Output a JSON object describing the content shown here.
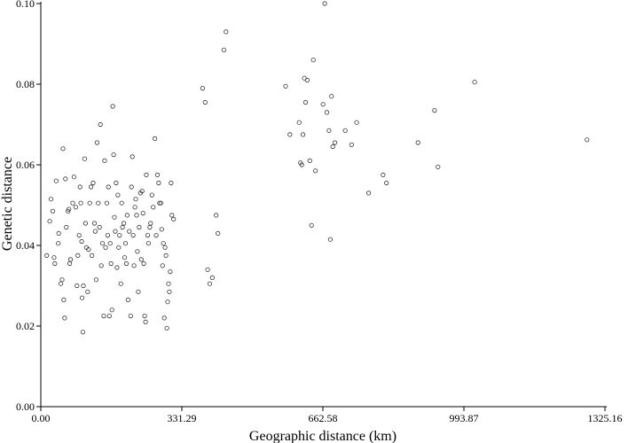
{
  "chart_data": {
    "type": "scatter",
    "title": "",
    "xlabel": "Geographic distance (km)",
    "ylabel": "Genetic distance",
    "xlim": [
      0,
      1325.16
    ],
    "ylim": [
      0,
      0.1
    ],
    "xticks": [
      0,
      331.29,
      662.58,
      993.87,
      1325.16
    ],
    "xtick_labels": [
      "0.00",
      "331.29",
      "662.58",
      "993.87",
      "1325.16"
    ],
    "yticks": [
      0,
      0.02,
      0.04,
      0.06,
      0.08,
      0.1
    ],
    "ytick_labels": [
      "0.00",
      "0.02",
      "0.04",
      "0.06",
      "0.08",
      "0.10"
    ],
    "grid": false,
    "marker": "open-circle",
    "points": [
      [
        14,
        0.0375
      ],
      [
        21,
        0.046
      ],
      [
        24,
        0.0515
      ],
      [
        28,
        0.0485
      ],
      [
        31,
        0.037
      ],
      [
        33,
        0.0355
      ],
      [
        36,
        0.056
      ],
      [
        41,
        0.0405
      ],
      [
        42,
        0.043
      ],
      [
        47,
        0.0305
      ],
      [
        50,
        0.0315
      ],
      [
        52,
        0.064
      ],
      [
        54,
        0.0265
      ],
      [
        56,
        0.022
      ],
      [
        58,
        0.0565
      ],
      [
        60,
        0.0445
      ],
      [
        64,
        0.0485
      ],
      [
        66,
        0.049
      ],
      [
        68,
        0.0355
      ],
      [
        70,
        0.0365
      ],
      [
        75,
        0.0505
      ],
      [
        78,
        0.057
      ],
      [
        82,
        0.0495
      ],
      [
        85,
        0.03
      ],
      [
        87,
        0.0375
      ],
      [
        90,
        0.0425
      ],
      [
        92,
        0.0545
      ],
      [
        94,
        0.0505
      ],
      [
        96,
        0.041
      ],
      [
        97,
        0.027
      ],
      [
        99,
        0.0185
      ],
      [
        100,
        0.03
      ],
      [
        103,
        0.0615
      ],
      [
        105,
        0.0455
      ],
      [
        107,
        0.0395
      ],
      [
        110,
        0.0285
      ],
      [
        112,
        0.039
      ],
      [
        115,
        0.0505
      ],
      [
        118,
        0.0545
      ],
      [
        120,
        0.0375
      ],
      [
        123,
        0.0555
      ],
      [
        126,
        0.0455
      ],
      [
        128,
        0.0435
      ],
      [
        130,
        0.0315
      ],
      [
        132,
        0.0655
      ],
      [
        135,
        0.0505
      ],
      [
        138,
        0.0445
      ],
      [
        140,
        0.07
      ],
      [
        142,
        0.035
      ],
      [
        145,
        0.0405
      ],
      [
        148,
        0.0225
      ],
      [
        150,
        0.061
      ],
      [
        152,
        0.0395
      ],
      [
        155,
        0.0505
      ],
      [
        157,
        0.0425
      ],
      [
        159,
        0.0545
      ],
      [
        161,
        0.0225
      ],
      [
        163,
        0.0405
      ],
      [
        165,
        0.0355
      ],
      [
        167,
        0.024
      ],
      [
        169,
        0.0745
      ],
      [
        171,
        0.0625
      ],
      [
        173,
        0.047
      ],
      [
        175,
        0.0435
      ],
      [
        177,
        0.0555
      ],
      [
        179,
        0.0345
      ],
      [
        181,
        0.0525
      ],
      [
        183,
        0.0395
      ],
      [
        185,
        0.0425
      ],
      [
        188,
        0.0305
      ],
      [
        190,
        0.0505
      ],
      [
        192,
        0.0445
      ],
      [
        195,
        0.0455
      ],
      [
        197,
        0.037
      ],
      [
        199,
        0.0405
      ],
      [
        201,
        0.0355
      ],
      [
        203,
        0.0475
      ],
      [
        205,
        0.0265
      ],
      [
        208,
        0.0435
      ],
      [
        211,
        0.0225
      ],
      [
        213,
        0.0545
      ],
      [
        215,
        0.062
      ],
      [
        217,
        0.0425
      ],
      [
        219,
        0.035
      ],
      [
        221,
        0.0495
      ],
      [
        223,
        0.0515
      ],
      [
        225,
        0.0475
      ],
      [
        227,
        0.0385
      ],
      [
        229,
        0.0285
      ],
      [
        231,
        0.0445
      ],
      [
        234,
        0.053
      ],
      [
        236,
        0.0365
      ],
      [
        238,
        0.0535
      ],
      [
        240,
        0.048
      ],
      [
        242,
        0.0355
      ],
      [
        244,
        0.0225
      ],
      [
        246,
        0.021
      ],
      [
        248,
        0.0575
      ],
      [
        251,
        0.0425
      ],
      [
        253,
        0.0405
      ],
      [
        256,
        0.0445
      ],
      [
        258,
        0.0455
      ],
      [
        261,
        0.0525
      ],
      [
        264,
        0.0495
      ],
      [
        268,
        0.0665
      ],
      [
        271,
        0.0425
      ],
      [
        274,
        0.0575
      ],
      [
        277,
        0.0555
      ],
      [
        279,
        0.0505
      ],
      [
        282,
        0.0505
      ],
      [
        284,
        0.044
      ],
      [
        286,
        0.035
      ],
      [
        288,
        0.0405
      ],
      [
        290,
        0.022
      ],
      [
        292,
        0.0395
      ],
      [
        294,
        0.0375
      ],
      [
        296,
        0.0195
      ],
      [
        298,
        0.026
      ],
      [
        300,
        0.0305
      ],
      [
        302,
        0.0285
      ],
      [
        304,
        0.0335
      ],
      [
        306,
        0.0555
      ],
      [
        308,
        0.0475
      ],
      [
        312,
        0.0465
      ],
      [
        380,
        0.079
      ],
      [
        386,
        0.0755
      ],
      [
        392,
        0.034
      ],
      [
        397,
        0.0305
      ],
      [
        403,
        0.032
      ],
      [
        412,
        0.0475
      ],
      [
        416,
        0.043
      ],
      [
        430,
        0.0885
      ],
      [
        435,
        0.093
      ],
      [
        575,
        0.0795
      ],
      [
        585,
        0.0675
      ],
      [
        607,
        0.0705
      ],
      [
        610,
        0.0605
      ],
      [
        613,
        0.06
      ],
      [
        616,
        0.0675
      ],
      [
        619,
        0.0815
      ],
      [
        622,
        0.0755
      ],
      [
        626,
        0.081
      ],
      [
        632,
        0.061
      ],
      [
        636,
        0.045
      ],
      [
        640,
        0.086
      ],
      [
        645,
        0.0585
      ],
      [
        663,
        0.075
      ],
      [
        667,
        0.1
      ],
      [
        672,
        0.073
      ],
      [
        677,
        0.0685
      ],
      [
        680,
        0.0415
      ],
      [
        683,
        0.077
      ],
      [
        686,
        0.0645
      ],
      [
        691,
        0.0655
      ],
      [
        715,
        0.0685
      ],
      [
        730,
        0.065
      ],
      [
        742,
        0.0705
      ],
      [
        770,
        0.053
      ],
      [
        804,
        0.0575
      ],
      [
        812,
        0.0555
      ],
      [
        886,
        0.0655
      ],
      [
        925,
        0.0735
      ],
      [
        933,
        0.0595
      ],
      [
        1019,
        0.0805
      ],
      [
        1283,
        0.0662
      ]
    ]
  }
}
